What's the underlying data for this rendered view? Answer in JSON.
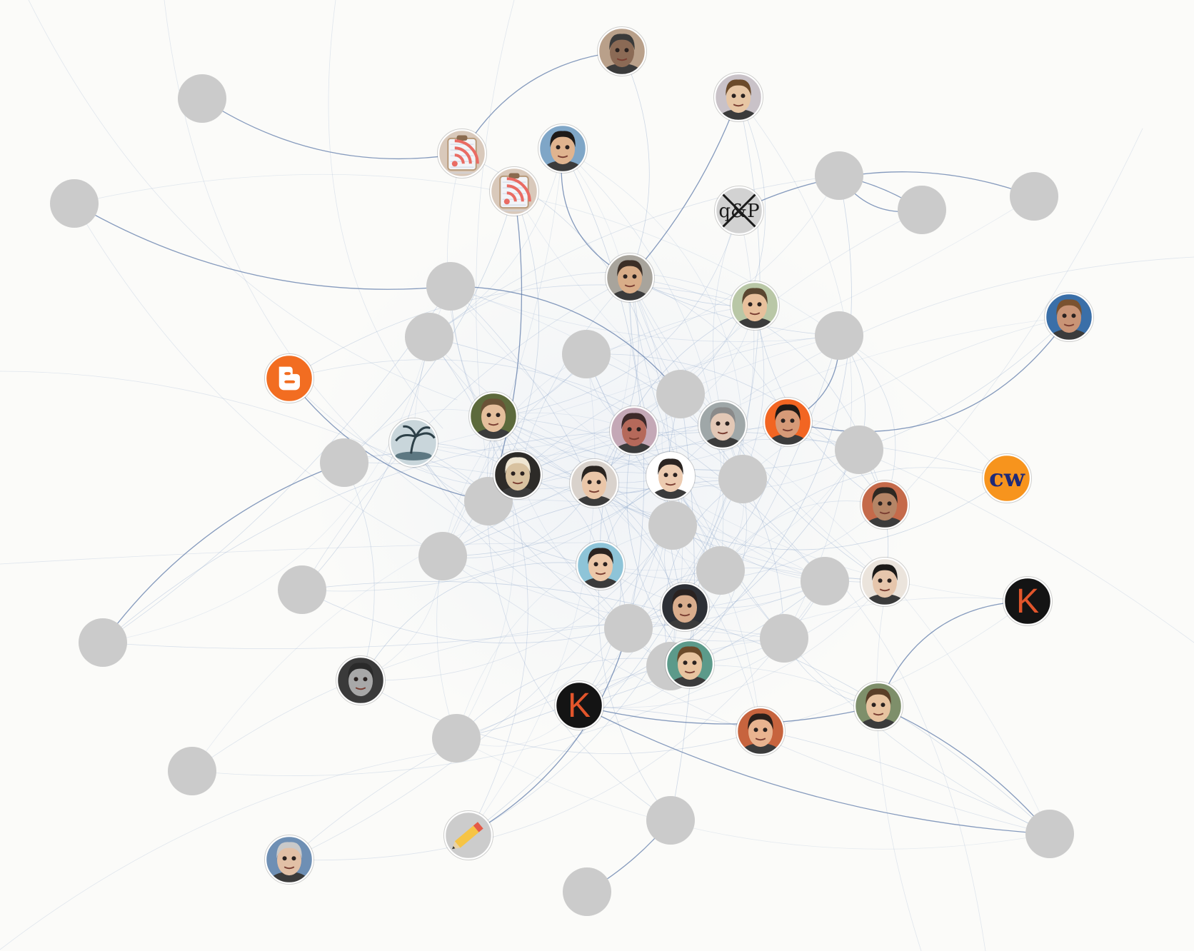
{
  "colors": {
    "background": "#fbfbf9",
    "edge": "#7f9bc4",
    "edge_strong": "#5d7aa8",
    "placeholder_node": "#cbcbcb",
    "blogger_orange": "#f26d21",
    "cw_orange": "#f7941d",
    "cw_text": "#1f2a78",
    "k_bg": "#141414",
    "k_letter": "#e2552b",
    "avatar_orange": "#f26522",
    "rss_tile": "#e96b63"
  },
  "graph": {
    "nodes": [
      {
        "id": "n01",
        "kind": "avatar",
        "icon": "avatar-icon",
        "tone": "#8b6a55",
        "hair": "#3a3a3a",
        "bg": "#b9a08a"
      },
      {
        "id": "n02",
        "kind": "avatar",
        "icon": "avatar-icon",
        "tone": "#e7c6a4",
        "hair": "#6b4a2a",
        "bg": "#c9c2c8"
      },
      {
        "id": "n03",
        "kind": "placeholder"
      },
      {
        "id": "n04",
        "kind": "rss",
        "icon": "rss-feed-icon"
      },
      {
        "id": "n05",
        "kind": "avatar",
        "icon": "avatar-icon",
        "tone": "#e0b48f",
        "hair": "#1e1a18",
        "bg": "#7fa6c7"
      },
      {
        "id": "n06",
        "kind": "rss",
        "icon": "rss-feed-icon"
      },
      {
        "id": "n07",
        "kind": "placeholder"
      },
      {
        "id": "n08",
        "kind": "pp-logo",
        "icon": "pp-logo-icon",
        "text": "q&P"
      },
      {
        "id": "n09",
        "kind": "placeholder"
      },
      {
        "id": "n10",
        "kind": "placeholder"
      },
      {
        "id": "n11",
        "kind": "placeholder"
      },
      {
        "id": "n12",
        "kind": "placeholder"
      },
      {
        "id": "n13",
        "kind": "avatar",
        "icon": "avatar-icon",
        "tone": "#d9ad88",
        "hair": "#3b2e26",
        "bg": "#a8a49c"
      },
      {
        "id": "n14",
        "kind": "avatar",
        "icon": "avatar-icon",
        "tone": "#e8c09c",
        "hair": "#5a4630",
        "bg": "#b9c7a6"
      },
      {
        "id": "n15",
        "kind": "avatar",
        "icon": "avatar-icon",
        "tone": "#c99476",
        "hair": "#7a5230",
        "bg": "#3a6fa8"
      },
      {
        "id": "n16",
        "kind": "placeholder"
      },
      {
        "id": "n17",
        "kind": "placeholder"
      },
      {
        "id": "n18",
        "kind": "blogger",
        "icon": "blogger-logo-icon"
      },
      {
        "id": "n19",
        "kind": "placeholder"
      },
      {
        "id": "n20",
        "kind": "placeholder"
      },
      {
        "id": "n21",
        "kind": "placeholder"
      },
      {
        "id": "n22",
        "kind": "avatar",
        "icon": "avatar-icon",
        "tone": "#e5bf9c",
        "hair": "#6a5236",
        "bg": "#5d6a3c"
      },
      {
        "id": "n23",
        "kind": "island",
        "icon": "palm-island-icon"
      },
      {
        "id": "n24",
        "kind": "avatar",
        "icon": "avatar-icon",
        "tone": "#b5695a",
        "hair": "#3d2a2a",
        "bg": "#c4a8b6"
      },
      {
        "id": "n25",
        "kind": "avatar",
        "icon": "avatar-icon",
        "tone": "#e3c8b6",
        "hair": "#8a8a8a",
        "bg": "#9fa7a8"
      },
      {
        "id": "n26",
        "kind": "avatar",
        "icon": "avatar-icon",
        "tone": "#d69a78",
        "hair": "#1f1a17",
        "bg": "#f26522"
      },
      {
        "id": "n27",
        "kind": "placeholder"
      },
      {
        "id": "n28",
        "kind": "cw-logo",
        "icon": "cw-logo-icon",
        "text": "cw"
      },
      {
        "id": "n29",
        "kind": "placeholder"
      },
      {
        "id": "n30",
        "kind": "avatar",
        "icon": "avatar-icon",
        "tone": "#d8c2a0",
        "hair": "#efe6d2",
        "bg": "#2d2b28"
      },
      {
        "id": "n31",
        "kind": "placeholder"
      },
      {
        "id": "n32",
        "kind": "avatar",
        "icon": "avatar-icon",
        "tone": "#eac6a8",
        "hair": "#2a2420",
        "bg": "#d9d2cc"
      },
      {
        "id": "n33",
        "kind": "avatar",
        "icon": "avatar-icon",
        "tone": "#eccbb0",
        "hair": "#2b2421",
        "bg": "#ffffff"
      },
      {
        "id": "n34",
        "kind": "placeholder"
      },
      {
        "id": "n35",
        "kind": "avatar",
        "icon": "avatar-icon",
        "tone": "#b58566",
        "hair": "#2e2822",
        "bg": "#c56a4a"
      },
      {
        "id": "n36",
        "kind": "placeholder"
      },
      {
        "id": "n37",
        "kind": "placeholder"
      },
      {
        "id": "n38",
        "kind": "placeholder"
      },
      {
        "id": "n39",
        "kind": "avatar",
        "icon": "avatar-icon",
        "tone": "#ecc8a9",
        "hair": "#2b231f",
        "bg": "#8ec4d8"
      },
      {
        "id": "n40",
        "kind": "placeholder"
      },
      {
        "id": "n41",
        "kind": "placeholder"
      },
      {
        "id": "n42",
        "kind": "avatar",
        "icon": "avatar-icon",
        "tone": "#e6c6ac",
        "hair": "#1c1a18",
        "bg": "#ebe4dc"
      },
      {
        "id": "n43",
        "kind": "avatar",
        "icon": "avatar-icon",
        "tone": "#d9ad8d",
        "hair": "#2a2220",
        "bg": "#2d3036"
      },
      {
        "id": "n44",
        "kind": "placeholder"
      },
      {
        "id": "n45",
        "kind": "placeholder"
      },
      {
        "id": "n46",
        "kind": "k-logo",
        "icon": "k-logo-icon",
        "text": "K"
      },
      {
        "id": "n47",
        "kind": "avatar",
        "icon": "avatar-icon",
        "tone": "#a8a8a8",
        "hair": "#2a2a2a",
        "bg": "#3a3a3a"
      },
      {
        "id": "n48",
        "kind": "placeholder"
      },
      {
        "id": "n49",
        "kind": "avatar",
        "icon": "avatar-icon",
        "tone": "#e8c4a0",
        "hair": "#6b4a2a",
        "bg": "#5c9a8a"
      },
      {
        "id": "n50",
        "kind": "k-logo",
        "icon": "k-logo-icon",
        "text": "K"
      },
      {
        "id": "n51",
        "kind": "avatar",
        "icon": "avatar-icon",
        "tone": "#e9b490",
        "hair": "#2a1f1a",
        "bg": "#c7643e"
      },
      {
        "id": "n52",
        "kind": "avatar",
        "icon": "avatar-icon",
        "tone": "#e8c3a0",
        "hair": "#5a3e28",
        "bg": "#7e8f6a"
      },
      {
        "id": "n53",
        "kind": "placeholder"
      },
      {
        "id": "n54",
        "kind": "placeholder"
      },
      {
        "id": "n55",
        "kind": "pencil",
        "icon": "pencil-icon"
      },
      {
        "id": "n56",
        "kind": "placeholder"
      },
      {
        "id": "n57",
        "kind": "placeholder"
      },
      {
        "id": "n58",
        "kind": "avatar",
        "icon": "avatar-icon",
        "tone": "#e2c0a6",
        "hair": "#c9c9c9",
        "bg": "#6e8fb4"
      },
      {
        "id": "n59",
        "kind": "placeholder"
      }
    ]
  }
}
